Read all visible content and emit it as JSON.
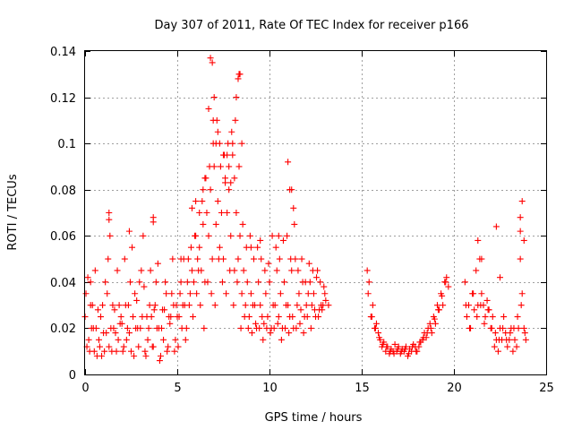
{
  "chart_data": {
    "type": "scatter",
    "title": "Day 307 of 2011, Rate Of TEC Index for receiver p166",
    "xlabel": "GPS time / hours",
    "ylabel": "ROTI / TECUs",
    "xlim": [
      0,
      25
    ],
    "ylim": [
      0,
      0.14
    ],
    "x_ticks": [
      "0",
      "5",
      "10",
      "15",
      "20",
      "25"
    ],
    "y_ticks": [
      "0",
      "0.02",
      "0.04",
      "0.06",
      "0.08",
      "0.1",
      "0.12",
      "0.14"
    ],
    "grid": true,
    "marker": "+",
    "color": "#ff0000",
    "series": [
      {
        "x": [
          0.0,
          0.2,
          0.4,
          0.6,
          0.8,
          1.0,
          1.2,
          1.4,
          1.6,
          1.8,
          2.0,
          2.2,
          2.4,
          2.6,
          2.8,
          3.0,
          3.2,
          3.4,
          3.6,
          3.8,
          4.0,
          4.2,
          4.4,
          4.6,
          4.8,
          5.0,
          5.2,
          5.4,
          5.6,
          5.8,
          6.0,
          6.2,
          6.4,
          6.6,
          6.8,
          7.0,
          7.2,
          7.4,
          7.6,
          7.8,
          8.0,
          8.2,
          8.4,
          8.6,
          8.8,
          9.0,
          9.2,
          9.4,
          9.6,
          9.8,
          10.0,
          10.2,
          10.4,
          10.6,
          10.8,
          11.0,
          11.2,
          11.4,
          11.6,
          11.8,
          12.0,
          12.2,
          12.4,
          12.6,
          12.8,
          13.0,
          13.2,
          0.1,
          0.3,
          0.5,
          0.7,
          0.9,
          1.1,
          1.3,
          1.5,
          1.7,
          1.9,
          2.1,
          2.3,
          2.5,
          2.7,
          2.9,
          3.1,
          3.3,
          3.5,
          3.7,
          3.9,
          4.1,
          4.3,
          4.5,
          4.7,
          4.9,
          5.1,
          5.3,
          5.5,
          5.7,
          5.9,
          6.1,
          6.3,
          6.5,
          6.7,
          6.9,
          7.1,
          7.3,
          7.5,
          7.7,
          7.9,
          8.1,
          8.3,
          8.5,
          8.7,
          8.9,
          9.1,
          9.3,
          9.5,
          9.7,
          9.9,
          10.1,
          10.3,
          10.5,
          10.7,
          10.9,
          11.1,
          11.3,
          11.5,
          11.7,
          11.9,
          12.1,
          12.3,
          12.5,
          12.7,
          12.9,
          0.05,
          0.25,
          0.45,
          0.65,
          0.85,
          1.05,
          1.25,
          1.45,
          1.65,
          1.85,
          2.05,
          2.25,
          2.45,
          2.65,
          2.85,
          3.05,
          3.25,
          3.45,
          3.65,
          3.85,
          4.05,
          4.25,
          4.45,
          4.65,
          4.85,
          5.05,
          5.25,
          5.45,
          5.65,
          5.85,
          6.05,
          6.25,
          6.45,
          6.65,
          6.85,
          7.05,
          7.25,
          7.45,
          7.65,
          7.85,
          8.05,
          8.25,
          8.45,
          8.65,
          8.85,
          9.05,
          9.25,
          9.45,
          9.65,
          9.85,
          10.05,
          10.25,
          10.45,
          10.65,
          10.85,
          11.05,
          11.25,
          11.45,
          11.65,
          11.85,
          12.05,
          12.25,
          12.45,
          12.65,
          12.85,
          13.05,
          0.15,
          0.35,
          0.55,
          0.75,
          0.95,
          1.15,
          1.35,
          1.55,
          1.75,
          1.95,
          2.15,
          2.35,
          2.55,
          2.75,
          2.95,
          3.15,
          3.35,
          3.55,
          3.75,
          3.95,
          4.15,
          4.35,
          4.55,
          4.75,
          4.95,
          5.15,
          5.35,
          5.55,
          5.75,
          5.95,
          6.15,
          6.35,
          6.55,
          6.75,
          6.95,
          7.15,
          7.35,
          7.55,
          7.75,
          7.95,
          8.15,
          8.35,
          8.55,
          8.75,
          8.95,
          9.15,
          9.35,
          9.55,
          9.75,
          9.95,
          10.15,
          10.35,
          10.55,
          10.75,
          10.95,
          11.15,
          11.35,
          11.55,
          11.75,
          11.95,
          12.15,
          12.35,
          12.55,
          12.75,
          12.95,
          0.3,
          1.3,
          1.3,
          2.4,
          3.7,
          3.7,
          5.2,
          5.8,
          6.0,
          6.2,
          6.4,
          6.5,
          6.7,
          6.8,
          6.9,
          6.95,
          7.0,
          7.1,
          7.2,
          7.3,
          7.5,
          7.6,
          7.7,
          7.8,
          7.9,
          8.0,
          8.1,
          8.2,
          8.3,
          8.35,
          8.4,
          8.5,
          9.0,
          9.5,
          10.5,
          11.0,
          11.1,
          11.2,
          11.3,
          15.3,
          15.4,
          15.5,
          15.6,
          15.7,
          15.8,
          15.9,
          16.0,
          16.1,
          16.2,
          16.3,
          16.4,
          16.5,
          16.6,
          16.7,
          16.8,
          16.9,
          17.0,
          17.1,
          17.2,
          17.3,
          17.4,
          17.5,
          17.6,
          17.7,
          17.8,
          17.9,
          18.0,
          18.1,
          18.2,
          18.3,
          18.4,
          18.5,
          18.6,
          18.7,
          18.8,
          18.9,
          19.0,
          19.1,
          19.2,
          19.3,
          19.4,
          19.5,
          19.6,
          19.7,
          15.35,
          15.55,
          15.75,
          15.95,
          16.15,
          16.35,
          16.55,
          16.75,
          16.95,
          17.15,
          17.35,
          17.55,
          17.75,
          17.95,
          18.15,
          18.35,
          18.55,
          18.75,
          18.95,
          19.15,
          19.35,
          19.55,
          20.6,
          20.7,
          20.8,
          20.9,
          21.0,
          21.1,
          21.2,
          21.3,
          21.4,
          21.5,
          21.6,
          21.7,
          21.8,
          21.9,
          22.0,
          22.1,
          22.2,
          22.3,
          22.4,
          22.5,
          22.6,
          22.7,
          22.8,
          22.9,
          23.0,
          23.1,
          23.2,
          23.3,
          23.4,
          23.5,
          23.6,
          23.7,
          23.8,
          23.9,
          20.65,
          20.85,
          21.05,
          21.25,
          21.45,
          21.65,
          21.85,
          22.05,
          22.25,
          22.45,
          22.65,
          22.85,
          23.05,
          23.25,
          23.45,
          23.65,
          23.85,
          21.3,
          21.5,
          22.3,
          22.5,
          23.6,
          23.6,
          23.7,
          23.8
        ],
        "y": [
          0.025,
          0.015,
          0.03,
          0.02,
          0.012,
          0.018,
          0.035,
          0.02,
          0.028,
          0.015,
          0.022,
          0.03,
          0.018,
          0.025,
          0.032,
          0.02,
          0.038,
          0.015,
          0.025,
          0.03,
          0.02,
          0.028,
          0.035,
          0.022,
          0.03,
          0.025,
          0.04,
          0.03,
          0.05,
          0.045,
          0.06,
          0.055,
          0.065,
          0.07,
          0.08,
          0.09,
          0.075,
          0.07,
          0.085,
          0.08,
          0.095,
          0.07,
          0.06,
          0.045,
          0.04,
          0.035,
          0.03,
          0.04,
          0.025,
          0.035,
          0.04,
          0.03,
          0.045,
          0.035,
          0.04,
          0.03,
          0.045,
          0.05,
          0.035,
          0.04,
          0.03,
          0.04,
          0.035,
          0.045,
          0.03,
          0.035,
          0.03,
          0.012,
          0.03,
          0.01,
          0.028,
          0.008,
          0.04,
          0.012,
          0.03,
          0.01,
          0.022,
          0.012,
          0.02,
          0.01,
          0.035,
          0.012,
          0.025,
          0.008,
          0.03,
          0.012,
          0.02,
          0.008,
          0.028,
          0.012,
          0.035,
          0.015,
          0.025,
          0.03,
          0.02,
          0.035,
          0.04,
          0.05,
          0.045,
          0.04,
          0.06,
          0.05,
          0.065,
          0.055,
          0.05,
          0.07,
          0.06,
          0.045,
          0.05,
          0.035,
          0.03,
          0.025,
          0.03,
          0.02,
          0.03,
          0.022,
          0.025,
          0.02,
          0.03,
          0.025,
          0.02,
          0.03,
          0.025,
          0.02,
          0.03,
          0.028,
          0.025,
          0.035,
          0.03,
          0.025,
          0.028,
          0.03,
          0.035,
          0.01,
          0.02,
          0.008,
          0.025,
          0.01,
          0.05,
          0.01,
          0.018,
          0.03,
          0.01,
          0.015,
          0.04,
          0.008,
          0.02,
          0.045,
          0.01,
          0.02,
          0.012,
          0.04,
          0.006,
          0.015,
          0.01,
          0.025,
          0.01,
          0.012,
          0.02,
          0.015,
          0.03,
          0.025,
          0.035,
          0.03,
          0.02,
          0.04,
          0.035,
          0.03,
          0.05,
          0.04,
          0.035,
          0.045,
          0.03,
          0.04,
          0.02,
          0.025,
          0.02,
          0.018,
          0.022,
          0.02,
          0.015,
          0.02,
          0.018,
          0.02,
          0.022,
          0.015,
          0.02,
          0.018,
          0.025,
          0.02,
          0.022,
          0.018,
          0.025,
          0.02,
          0.028,
          0.025,
          0.028,
          0.032,
          0.042,
          0.02,
          0.045,
          0.015,
          0.03,
          0.018,
          0.06,
          0.02,
          0.045,
          0.025,
          0.05,
          0.03,
          0.055,
          0.02,
          0.04,
          0.06,
          0.025,
          0.045,
          0.028,
          0.048,
          0.02,
          0.04,
          0.025,
          0.05,
          0.03,
          0.035,
          0.05,
          0.04,
          0.055,
          0.06,
          0.045,
          0.075,
          0.085,
          0.09,
          0.1,
          0.11,
          0.09,
          0.095,
          0.1,
          0.105,
          0.11,
          0.09,
          0.065,
          0.055,
          0.06,
          0.05,
          0.055,
          0.05,
          0.045,
          0.048,
          0.06,
          0.055,
          0.05,
          0.058,
          0.06,
          0.05,
          0.065,
          0.045,
          0.05,
          0.04,
          0.048,
          0.045,
          0.042,
          0.04,
          0.038,
          0.04,
          0.07,
          0.067,
          0.062,
          0.068,
          0.066,
          0.05,
          0.072,
          0.075,
          0.07,
          0.08,
          0.085,
          0.115,
          0.137,
          0.135,
          0.11,
          0.12,
          0.1,
          0.105,
          0.1,
          0.095,
          0.083,
          0.095,
          0.09,
          0.083,
          0.1,
          0.085,
          0.12,
          0.128,
          0.13,
          0.13,
          0.1,
          0.055,
          0.058,
          0.06,
          0.092,
          0.08,
          0.08,
          0.072,
          0.045,
          0.04,
          0.025,
          0.03,
          0.02,
          0.022,
          0.018,
          0.015,
          0.012,
          0.014,
          0.01,
          0.012,
          0.009,
          0.011,
          0.01,
          0.013,
          0.01,
          0.012,
          0.009,
          0.011,
          0.01,
          0.012,
          0.008,
          0.011,
          0.01,
          0.013,
          0.012,
          0.01,
          0.012,
          0.014,
          0.015,
          0.018,
          0.016,
          0.02,
          0.022,
          0.018,
          0.025,
          0.022,
          0.03,
          0.028,
          0.035,
          0.03,
          0.04,
          0.042,
          0.038,
          0.035,
          0.025,
          0.02,
          0.016,
          0.013,
          0.012,
          0.01,
          0.009,
          0.011,
          0.01,
          0.011,
          0.009,
          0.012,
          0.01,
          0.014,
          0.016,
          0.018,
          0.02,
          0.024,
          0.028,
          0.034,
          0.04,
          0.04,
          0.025,
          0.03,
          0.02,
          0.035,
          0.028,
          0.045,
          0.03,
          0.05,
          0.035,
          0.03,
          0.025,
          0.032,
          0.028,
          0.02,
          0.025,
          0.012,
          0.015,
          0.01,
          0.02,
          0.015,
          0.025,
          0.018,
          0.012,
          0.015,
          0.02,
          0.01,
          0.015,
          0.012,
          0.02,
          0.05,
          0.035,
          0.02,
          0.015,
          0.03,
          0.02,
          0.035,
          0.025,
          0.03,
          0.022,
          0.028,
          0.02,
          0.018,
          0.015,
          0.02,
          0.015,
          0.018,
          0.02,
          0.025,
          0.03,
          0.018,
          0.058,
          0.05,
          0.064,
          0.042,
          0.062,
          0.068,
          0.075,
          0.058
        ]
      }
    ]
  }
}
